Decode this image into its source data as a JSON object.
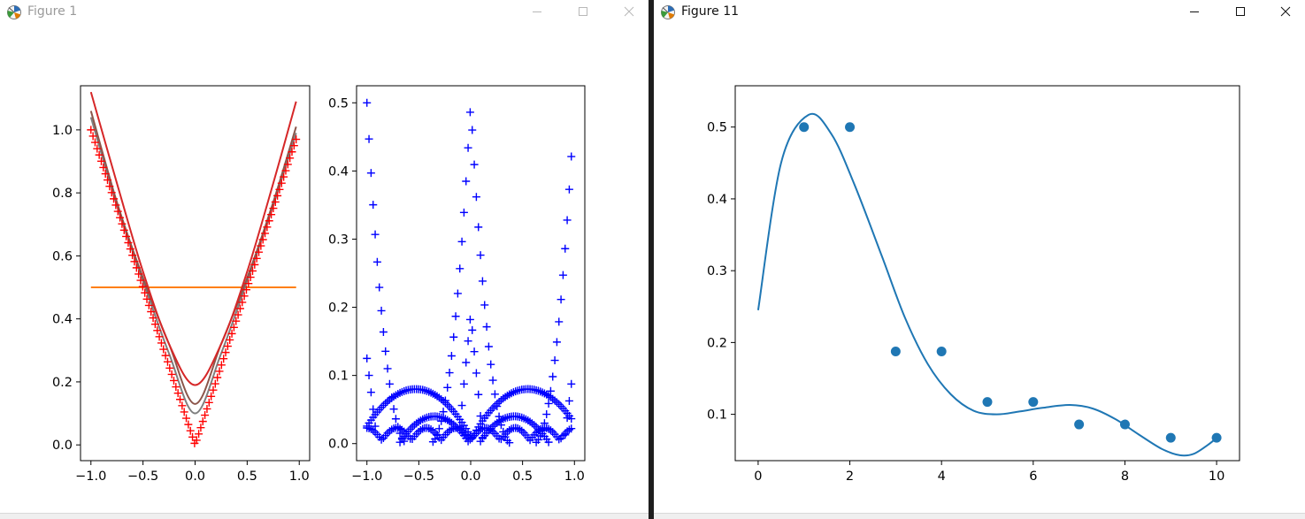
{
  "windows": [
    {
      "title": "Figure 1",
      "active": false
    },
    {
      "title": "Figure 11",
      "active": true
    }
  ],
  "icons": {
    "app": "matplotlib-figure-icon",
    "minimize": "minimize-icon",
    "maximize": "maximize-icon",
    "close": "close-icon"
  },
  "chart_data": [
    {
      "type": "line",
      "title": "",
      "xlabel": "",
      "ylabel": "",
      "xlim": [
        -1.1,
        1.1
      ],
      "ylim": [
        -0.05,
        1.14
      ],
      "xticks": [
        -1.0,
        -0.5,
        0.0,
        0.5,
        1.0
      ],
      "xtick_labels": [
        "−1.0",
        "−0.5",
        "0.0",
        "0.5",
        "1.0"
      ],
      "yticks": [
        0.0,
        0.2,
        0.4,
        0.6,
        0.8,
        1.0
      ],
      "ytick_labels": [
        "0.0",
        "0.2",
        "0.4",
        "0.6",
        "0.8",
        "1.0"
      ],
      "series": [
        {
          "kind": "line",
          "color": "#ff7f0e",
          "function": "constant",
          "x": [
            -1.0,
            0.97
          ],
          "y": [
            0.5,
            0.5
          ]
        },
        {
          "kind": "line",
          "color": "#7f7f7f",
          "function": "smoothed_abs",
          "x": [
            -1.0,
            -0.75,
            -0.5,
            -0.25,
            0.0,
            0.25,
            0.5,
            0.75,
            0.97
          ],
          "y": [
            1.04,
            0.76,
            0.52,
            0.29,
            0.1,
            0.29,
            0.52,
            0.76,
            0.99
          ]
        },
        {
          "kind": "line",
          "color": "#8c564b",
          "function": "smoothed_abs",
          "x": [
            -1.0,
            -0.75,
            -0.5,
            -0.25,
            0.0,
            0.25,
            0.5,
            0.75,
            0.97
          ],
          "y": [
            1.06,
            0.77,
            0.53,
            0.32,
            0.13,
            0.32,
            0.53,
            0.77,
            1.01
          ]
        },
        {
          "kind": "line",
          "color": "#d62728",
          "function": "smoothed_abs",
          "x": [
            -1.0,
            -0.75,
            -0.5,
            -0.25,
            0.0,
            0.25,
            0.5,
            0.75,
            0.97
          ],
          "y": [
            1.12,
            0.83,
            0.55,
            0.32,
            0.19,
            0.32,
            0.55,
            0.83,
            1.09
          ]
        },
        {
          "kind": "markers",
          "marker": "+",
          "color": "#ff0000",
          "function": "abs",
          "x_range": [
            -1.0,
            0.97
          ],
          "n_points": 100
        }
      ]
    },
    {
      "type": "scatter",
      "title": "",
      "xlabel": "",
      "ylabel": "",
      "xlim": [
        -1.1,
        1.1
      ],
      "ylim": [
        -0.025,
        0.525
      ],
      "xticks": [
        -1.0,
        -0.5,
        0.0,
        0.5,
        1.0
      ],
      "xtick_labels": [
        "−1.0",
        "−0.5",
        "0.0",
        "0.5",
        "1.0"
      ],
      "yticks": [
        0.0,
        0.1,
        0.2,
        0.3,
        0.4,
        0.5
      ],
      "ytick_labels": [
        "0.0",
        "0.1",
        "0.2",
        "0.3",
        "0.4",
        "0.5"
      ],
      "series": [
        {
          "kind": "markers",
          "marker": "+",
          "color": "#0000ff",
          "function": "residuals",
          "x_range": [
            -1.0,
            0.97
          ],
          "n_points": 100
        }
      ]
    },
    {
      "type": "line",
      "title": "",
      "xlabel": "",
      "ylabel": "",
      "xlim": [
        -0.5,
        10.5
      ],
      "ylim": [
        0.0355,
        0.5575
      ],
      "xticks": [
        0,
        2,
        4,
        6,
        8,
        10
      ],
      "xtick_labels": [
        "0",
        "2",
        "4",
        "6",
        "8",
        "10"
      ],
      "yticks": [
        0.1,
        0.2,
        0.3,
        0.4,
        0.5
      ],
      "ytick_labels": [
        "0.1",
        "0.2",
        "0.3",
        "0.4",
        "0.5"
      ],
      "points": {
        "color": "#1f77b4",
        "x": [
          1,
          2,
          3,
          4,
          5,
          6,
          7,
          8,
          9,
          10
        ],
        "y": [
          0.5,
          0.5,
          0.1875,
          0.1875,
          0.1172,
          0.1172,
          0.0859,
          0.0859,
          0.0674,
          0.0674
        ]
      },
      "curve": {
        "color": "#1f77b4",
        "x": [
          0,
          0.5,
          1.1,
          1.6,
          2.1,
          2.7,
          3.2,
          3.7,
          4.2,
          4.7,
          5.2,
          5.7,
          6.2,
          6.8,
          7.3,
          7.8,
          8.3,
          8.8,
          9.2,
          9.5,
          9.8,
          10.0
        ],
        "y": [
          0.245,
          0.45,
          0.517,
          0.49,
          0.42,
          0.32,
          0.235,
          0.17,
          0.128,
          0.105,
          0.1,
          0.104,
          0.109,
          0.113,
          0.108,
          0.093,
          0.072,
          0.052,
          0.043,
          0.045,
          0.057,
          0.067
        ]
      }
    }
  ]
}
